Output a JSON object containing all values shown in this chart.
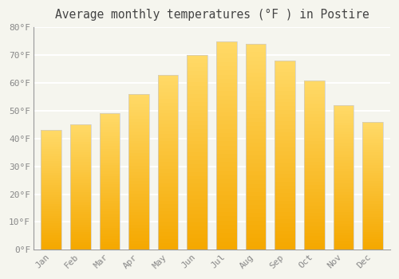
{
  "title": "Average monthly temperatures (°F ) in Postire",
  "months": [
    "Jan",
    "Feb",
    "Mar",
    "Apr",
    "May",
    "Jun",
    "Jul",
    "Aug",
    "Sep",
    "Oct",
    "Nov",
    "Dec"
  ],
  "values": [
    43,
    45,
    49,
    56,
    63,
    70,
    75,
    74,
    68,
    61,
    52,
    46
  ],
  "ylim": [
    0,
    80
  ],
  "yticks": [
    0,
    10,
    20,
    30,
    40,
    50,
    60,
    70,
    80
  ],
  "ytick_labels": [
    "0°F",
    "10°F",
    "20°F",
    "30°F",
    "40°F",
    "50°F",
    "60°F",
    "70°F",
    "80°F"
  ],
  "background_color": "#f5f5ee",
  "grid_color": "#e8e8e8",
  "title_fontsize": 10.5,
  "tick_fontsize": 8,
  "bar_color_bottom": "#F5A800",
  "bar_color_top": "#FFD966",
  "bar_edge_color": "#cccccc",
  "bar_width": 0.7,
  "gradient_steps": 50
}
